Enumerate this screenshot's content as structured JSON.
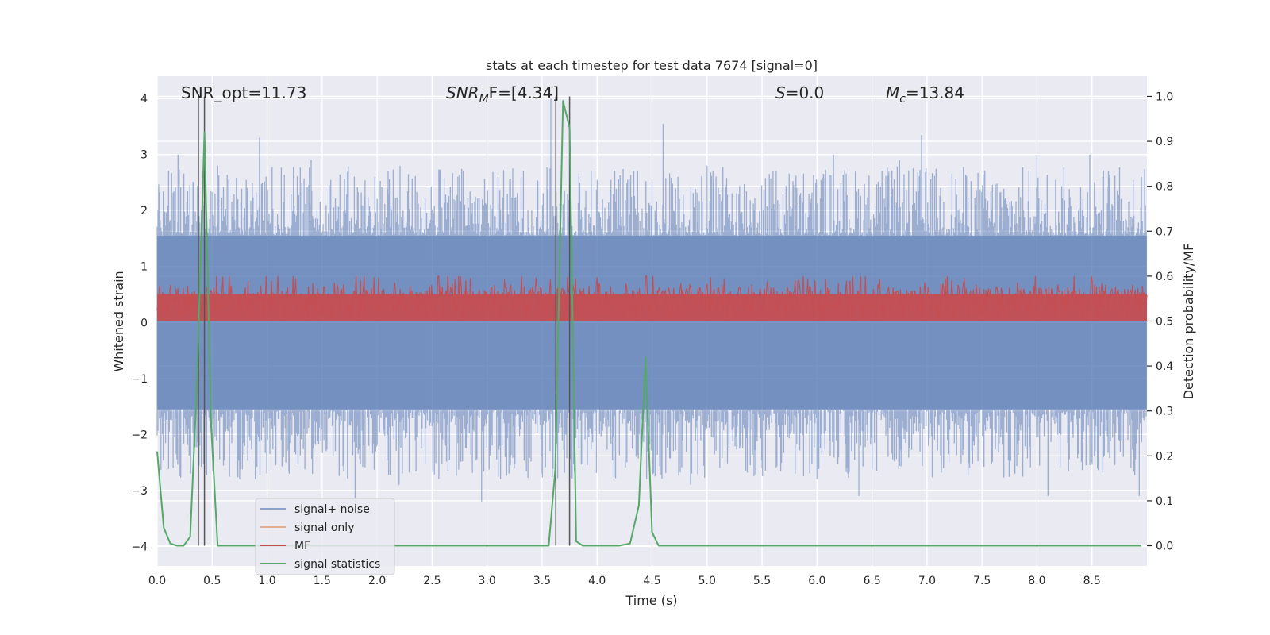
{
  "chart_data": {
    "type": "line",
    "title": "stats at each timestep for test data 7674 [signal=0]",
    "xlabel": "Time (s)",
    "ylabel_left": "Whitened strain",
    "ylabel_right": "Detection probability/MF",
    "xlim": [
      0.0,
      9.0
    ],
    "ylim_left": [
      -4.35,
      4.4
    ],
    "ylim_right": [
      -0.045,
      1.045
    ],
    "xticks": [
      0.0,
      0.5,
      1.0,
      1.5,
      2.0,
      2.5,
      3.0,
      3.5,
      4.0,
      4.5,
      5.0,
      5.5,
      6.0,
      6.5,
      7.0,
      7.5,
      8.0,
      8.5
    ],
    "xtick_labels": [
      "0.0",
      "0.5",
      "1.0",
      "1.5",
      "2.0",
      "2.5",
      "3.0",
      "3.5",
      "4.0",
      "4.5",
      "5.0",
      "5.5",
      "6.0",
      "6.5",
      "7.0",
      "7.5",
      "8.0",
      "8.5"
    ],
    "yticks_left": [
      -4,
      -3,
      -2,
      -1,
      0,
      1,
      2,
      3,
      4
    ],
    "ytick_labels_left": [
      "−4",
      "−3",
      "−2",
      "−1",
      "0",
      "1",
      "2",
      "3",
      "4"
    ],
    "yticks_right": [
      0.0,
      0.1,
      0.2,
      0.3,
      0.4,
      0.5,
      0.6,
      0.7,
      0.8,
      0.9,
      1.0
    ],
    "ytick_labels_right": [
      "0.0",
      "0.1",
      "0.2",
      "0.3",
      "0.4",
      "0.5",
      "0.6",
      "0.7",
      "0.8",
      "0.9",
      "1.0"
    ],
    "annotations": {
      "snr_opt": "SNR_opt=11.73",
      "snr_mf_base": "SNR",
      "snr_mf_sub": "M",
      "snr_mf_rest": "F=[4.34]",
      "s_italic": "S",
      "s_rest": "=0.0",
      "mc_base": "M",
      "mc_sub": "c",
      "mc_rest": "=13.84"
    },
    "vertical_lines_x": [
      0.375,
      0.43,
      3.625,
      3.75
    ],
    "series": [
      {
        "name": "signal+ noise",
        "color": "#4c72b0",
        "axis": "left",
        "style": "noise",
        "band_abs": 1.55,
        "spikes": [
          [
            0.02,
            2.1
          ],
          [
            0.19,
            3.0
          ],
          [
            0.26,
            -2.0
          ],
          [
            0.55,
            2.8
          ],
          [
            0.75,
            -2.8
          ],
          [
            0.93,
            3.3
          ],
          [
            1.2,
            -2.7
          ],
          [
            1.4,
            2.9
          ],
          [
            1.62,
            -2.3
          ],
          [
            1.8,
            -3.3
          ],
          [
            2.1,
            2.7
          ],
          [
            2.2,
            -2.9
          ],
          [
            2.57,
            2.7
          ],
          [
            2.95,
            -3.2
          ],
          [
            3.1,
            2.6
          ],
          [
            3.5,
            -2.7
          ],
          [
            3.58,
            4.0
          ],
          [
            3.62,
            -2.4
          ],
          [
            3.75,
            3.4
          ],
          [
            4.45,
            -2.8
          ],
          [
            4.6,
            3.55
          ],
          [
            4.85,
            -2.9
          ],
          [
            5.0,
            2.8
          ],
          [
            5.5,
            -2.6
          ],
          [
            5.6,
            2.7
          ],
          [
            6.0,
            -2.8
          ],
          [
            6.15,
            3.0
          ],
          [
            6.38,
            -3.1
          ],
          [
            6.75,
            2.9
          ],
          [
            6.95,
            3.35
          ],
          [
            7.15,
            -2.6
          ],
          [
            7.8,
            -2.7
          ],
          [
            8.0,
            3.0
          ],
          [
            8.1,
            -3.1
          ],
          [
            8.48,
            3.0
          ],
          [
            8.65,
            2.7
          ],
          [
            8.93,
            -3.1
          ],
          [
            8.95,
            2.6
          ]
        ]
      },
      {
        "name": "signal only",
        "color": "#dd8452",
        "axis": "left",
        "style": "none"
      },
      {
        "name": "MF",
        "color": "#c44e52",
        "axis": "right",
        "style": "mf",
        "base": 0.5,
        "top": 0.56,
        "max": 0.6
      },
      {
        "name": "signal statistics",
        "color": "#55a868",
        "axis": "right",
        "style": "line",
        "x": [
          0.0,
          0.06,
          0.12,
          0.18,
          0.24,
          0.3,
          0.36,
          0.43,
          0.49,
          0.55,
          0.6,
          1.0,
          2.0,
          3.0,
          3.5,
          3.56,
          3.62,
          3.69,
          3.75,
          3.81,
          3.87,
          4.0,
          4.2,
          4.3,
          4.38,
          4.44,
          4.5,
          4.56,
          4.6,
          5.0,
          6.0,
          7.0,
          8.0,
          8.95
        ],
        "y": [
          0.21,
          0.04,
          0.005,
          0.0,
          0.0,
          0.02,
          0.35,
          0.92,
          0.27,
          0.0,
          0.0,
          0.0,
          0.0,
          0.0,
          0.0,
          0.0,
          0.17,
          0.99,
          0.93,
          0.01,
          0.0,
          0.0,
          0.0,
          0.005,
          0.09,
          0.42,
          0.03,
          0.0,
          0.0,
          0.0,
          0.0,
          0.0,
          0.0,
          0.0
        ]
      }
    ],
    "legend": [
      "signal+ noise",
      "signal only",
      "MF",
      "signal statistics"
    ],
    "legend_position": "lower-left"
  }
}
